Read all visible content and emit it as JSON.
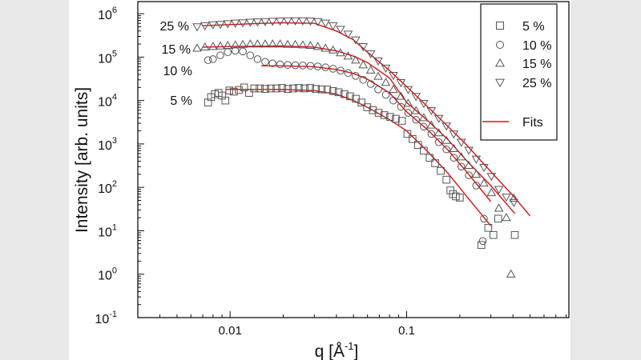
{
  "chart_data": {
    "type": "scatter",
    "title": "",
    "xlabel": {
      "main": "q  [Å",
      "sup": "-1",
      "close": "]"
    },
    "ylabel": "Intensity  [arb. units]",
    "xscale": "log",
    "yscale": "log",
    "xlim": [
      0.003,
      0.83
    ],
    "ylim": [
      0.1,
      1900000
    ],
    "grid": false,
    "legend_placement": "top-right",
    "xticks": [
      {
        "value": 0.01,
        "label": "0.01"
      },
      {
        "value": 0.1,
        "label": "0.1"
      }
    ],
    "yticks": [
      {
        "value": 0.1,
        "base": "10",
        "exp": "-1"
      },
      {
        "value": 1,
        "base": "10",
        "exp": "0"
      },
      {
        "value": 10,
        "base": "10",
        "exp": "1"
      },
      {
        "value": 100,
        "base": "10",
        "exp": "2"
      },
      {
        "value": 1000,
        "base": "10",
        "exp": "3"
      },
      {
        "value": 10000,
        "base": "10",
        "exp": "4"
      },
      {
        "value": 100000,
        "base": "10",
        "exp": "5"
      },
      {
        "value": 1000000,
        "base": "10",
        "exp": "6"
      }
    ],
    "colors": {
      "markers": "#555555",
      "fits": "#dd1111",
      "axes": "#111111"
    },
    "series": [
      {
        "name": "5 %",
        "marker": "square",
        "points": [
          [
            0.0075,
            9000
          ],
          [
            0.0078,
            12000
          ],
          [
            0.0082,
            14000
          ],
          [
            0.0086,
            15000
          ],
          [
            0.009,
            13000
          ],
          [
            0.0094,
            10000
          ],
          [
            0.0099,
            17000
          ],
          [
            0.0105,
            16000
          ],
          [
            0.0112,
            17500
          ],
          [
            0.012,
            20000
          ],
          [
            0.0128,
            15000
          ],
          [
            0.0137,
            19000
          ],
          [
            0.0147,
            19000
          ],
          [
            0.0158,
            18500
          ],
          [
            0.017,
            19000
          ],
          [
            0.0183,
            19000
          ],
          [
            0.0197,
            19500
          ],
          [
            0.0212,
            18500
          ],
          [
            0.0228,
            19000
          ],
          [
            0.0245,
            19500
          ],
          [
            0.0264,
            19000
          ],
          [
            0.0284,
            19500
          ],
          [
            0.0306,
            18500
          ],
          [
            0.033,
            18000
          ],
          [
            0.0355,
            18000
          ],
          [
            0.0383,
            16500
          ],
          [
            0.0412,
            15500
          ],
          [
            0.0444,
            14000
          ],
          [
            0.0478,
            12500
          ],
          [
            0.0515,
            11000
          ],
          [
            0.0555,
            9000
          ],
          [
            0.0598,
            7000
          ],
          [
            0.0644,
            6000
          ],
          [
            0.0694,
            5200
          ],
          [
            0.0748,
            4600
          ],
          [
            0.0806,
            4200
          ],
          [
            0.0868,
            3800
          ],
          [
            0.094,
            3400
          ],
          [
            0.101,
            1700
          ],
          [
            0.108,
            1300
          ],
          [
            0.116,
            950
          ],
          [
            0.125,
            700
          ],
          [
            0.135,
            480
          ],
          [
            0.145,
            360
          ],
          [
            0.156,
            240
          ],
          [
            0.168,
            150
          ],
          [
            0.177,
            85
          ],
          [
            0.183,
            70
          ],
          [
            0.19,
            62
          ],
          [
            0.2,
            58
          ],
          [
            0.265,
            4.7
          ],
          [
            0.29,
            11.7
          ],
          [
            0.31,
            8
          ],
          [
            0.33,
            19
          ],
          [
            0.41,
            8
          ]
        ]
      },
      {
        "name": "10 %",
        "marker": "circle",
        "points": [
          [
            0.0075,
            85000
          ],
          [
            0.008,
            90000
          ],
          [
            0.0088,
            110000
          ],
          [
            0.0097,
            130000
          ],
          [
            0.0107,
            140000
          ],
          [
            0.0118,
            135000
          ],
          [
            0.013,
            110000
          ],
          [
            0.0143,
            90000
          ],
          [
            0.0158,
            78000
          ],
          [
            0.0174,
            72000
          ],
          [
            0.0192,
            68000
          ],
          [
            0.0212,
            66000
          ],
          [
            0.0234,
            65000
          ],
          [
            0.0258,
            64000
          ],
          [
            0.0285,
            63000
          ],
          [
            0.0314,
            61000
          ],
          [
            0.0347,
            58000
          ],
          [
            0.0383,
            54000
          ],
          [
            0.0422,
            49000
          ],
          [
            0.0466,
            43000
          ],
          [
            0.0514,
            37000
          ],
          [
            0.0567,
            30000
          ],
          [
            0.0626,
            24000
          ],
          [
            0.069,
            18000
          ],
          [
            0.0762,
            13500
          ],
          [
            0.0841,
            10000
          ],
          [
            0.0928,
            7200
          ],
          [
            0.102,
            5200
          ],
          [
            0.113,
            3600
          ],
          [
            0.125,
            2500
          ],
          [
            0.138,
            1700
          ],
          [
            0.152,
            1100
          ],
          [
            0.168,
            750
          ],
          [
            0.185,
            480
          ],
          [
            0.204,
            300
          ],
          [
            0.225,
            190
          ],
          [
            0.248,
            110
          ],
          [
            0.274,
            19
          ],
          [
            0.27,
            5.8
          ]
        ]
      },
      {
        "name": "15 %",
        "marker": "triangle-up",
        "points": [
          [
            0.0065,
            160000
          ],
          [
            0.0072,
            170000
          ],
          [
            0.008,
            175000
          ],
          [
            0.0088,
            180000
          ],
          [
            0.0097,
            185000
          ],
          [
            0.0107,
            190000
          ],
          [
            0.0118,
            195000
          ],
          [
            0.013,
            200000
          ],
          [
            0.0143,
            200000
          ],
          [
            0.0158,
            200000
          ],
          [
            0.0174,
            200000
          ],
          [
            0.0192,
            200000
          ],
          [
            0.0212,
            195000
          ],
          [
            0.0234,
            195000
          ],
          [
            0.0258,
            190000
          ],
          [
            0.0285,
            185000
          ],
          [
            0.0314,
            175000
          ],
          [
            0.0347,
            160000
          ],
          [
            0.0383,
            145000
          ],
          [
            0.0422,
            125000
          ],
          [
            0.0466,
            105000
          ],
          [
            0.0514,
            85000
          ],
          [
            0.0567,
            66000
          ],
          [
            0.0626,
            50000
          ],
          [
            0.069,
            36000
          ],
          [
            0.0762,
            26000
          ],
          [
            0.0841,
            18000
          ],
          [
            0.0928,
            12500
          ],
          [
            0.102,
            8600
          ],
          [
            0.113,
            5800
          ],
          [
            0.125,
            4000
          ],
          [
            0.138,
            2700
          ],
          [
            0.152,
            1800
          ],
          [
            0.168,
            1200
          ],
          [
            0.185,
            780
          ],
          [
            0.204,
            500
          ],
          [
            0.225,
            320
          ],
          [
            0.248,
            200
          ],
          [
            0.274,
            125
          ],
          [
            0.302,
            75
          ],
          [
            0.333,
            33
          ],
          [
            0.367,
            20
          ],
          [
            0.39,
            1.0
          ],
          [
            0.405,
            56
          ]
        ]
      },
      {
        "name": "25 %",
        "marker": "triangle-down",
        "points": [
          [
            0.0065,
            500000
          ],
          [
            0.0072,
            530000
          ],
          [
            0.008,
            560000
          ],
          [
            0.0088,
            570000
          ],
          [
            0.0097,
            590000
          ],
          [
            0.0107,
            610000
          ],
          [
            0.0118,
            620000
          ],
          [
            0.013,
            640000
          ],
          [
            0.0143,
            650000
          ],
          [
            0.0158,
            660000
          ],
          [
            0.0174,
            670000
          ],
          [
            0.0192,
            680000
          ],
          [
            0.0212,
            690000
          ],
          [
            0.0234,
            690000
          ],
          [
            0.0258,
            690000
          ],
          [
            0.0285,
            680000
          ],
          [
            0.0314,
            660000
          ],
          [
            0.0347,
            610000
          ],
          [
            0.0383,
            530000
          ],
          [
            0.0422,
            440000
          ],
          [
            0.0466,
            340000
          ],
          [
            0.0514,
            250000
          ],
          [
            0.0567,
            175000
          ],
          [
            0.0626,
            120000
          ],
          [
            0.069,
            82000
          ],
          [
            0.0762,
            56000
          ],
          [
            0.0841,
            38000
          ],
          [
            0.0928,
            26000
          ],
          [
            0.102,
            18000
          ],
          [
            0.113,
            12500
          ],
          [
            0.125,
            8600
          ],
          [
            0.138,
            5900
          ],
          [
            0.152,
            3900
          ],
          [
            0.168,
            2600
          ],
          [
            0.185,
            1700
          ],
          [
            0.204,
            1100
          ],
          [
            0.225,
            720
          ],
          [
            0.248,
            450
          ],
          [
            0.274,
            290
          ],
          [
            0.302,
            180
          ],
          [
            0.333,
            90
          ],
          [
            0.367,
            60
          ],
          [
            0.405,
            45
          ]
        ]
      }
    ],
    "fits": [
      {
        "for": "5 %",
        "points": [
          [
            0.0095,
            18000
          ],
          [
            0.02,
            18000
          ],
          [
            0.03,
            17000
          ],
          [
            0.04,
            14000
          ],
          [
            0.05,
            10000
          ],
          [
            0.06,
            7000
          ],
          [
            0.08,
            3600
          ],
          [
            0.1,
            2000
          ],
          [
            0.13,
            700
          ],
          [
            0.17,
            220
          ],
          [
            0.22,
            60
          ],
          [
            0.3,
            13
          ]
        ]
      },
      {
        "for": "10 %",
        "points": [
          [
            0.015,
            63000
          ],
          [
            0.02,
            63000
          ],
          [
            0.03,
            60000
          ],
          [
            0.04,
            52000
          ],
          [
            0.05,
            42000
          ],
          [
            0.06,
            31000
          ],
          [
            0.08,
            15000
          ],
          [
            0.1,
            5500
          ],
          [
            0.13,
            2200
          ],
          [
            0.17,
            750
          ],
          [
            0.22,
            220
          ],
          [
            0.3,
            47
          ]
        ]
      },
      {
        "for": "15 %",
        "points": [
          [
            0.007,
            170000
          ],
          [
            0.01,
            175000
          ],
          [
            0.02,
            180000
          ],
          [
            0.03,
            170000
          ],
          [
            0.04,
            140000
          ],
          [
            0.05,
            105000
          ],
          [
            0.06,
            75000
          ],
          [
            0.08,
            33000
          ],
          [
            0.1,
            9000
          ],
          [
            0.13,
            3600
          ],
          [
            0.17,
            1300
          ],
          [
            0.22,
            400
          ],
          [
            0.3,
            110
          ],
          [
            0.41,
            25
          ]
        ]
      },
      {
        "for": "25 %",
        "points": [
          [
            0.007,
            530000
          ],
          [
            0.01,
            560000
          ],
          [
            0.015,
            600000
          ],
          [
            0.02,
            620000
          ],
          [
            0.03,
            600000
          ],
          [
            0.04,
            400000
          ],
          [
            0.05,
            250000
          ],
          [
            0.06,
            130000
          ],
          [
            0.08,
            49000
          ],
          [
            0.1,
            21000
          ],
          [
            0.13,
            7500
          ],
          [
            0.17,
            2600
          ],
          [
            0.22,
            920
          ],
          [
            0.3,
            230
          ],
          [
            0.4,
            65
          ],
          [
            0.5,
            22
          ]
        ]
      }
    ],
    "annotations": [
      {
        "text": "25 %",
        "series": "25 %"
      },
      {
        "text": "15 %",
        "series": "15 %"
      },
      {
        "text": "10 %",
        "series": "10 %"
      },
      {
        "text": "5 %",
        "series": "5 %"
      }
    ],
    "legend": [
      {
        "label": "5 %",
        "marker": "square"
      },
      {
        "label": "10 %",
        "marker": "circle"
      },
      {
        "label": "15 %",
        "marker": "triangle-up"
      },
      {
        "label": "25 %",
        "marker": "triangle-down"
      },
      {
        "label": "Fits",
        "marker": "line"
      }
    ]
  }
}
